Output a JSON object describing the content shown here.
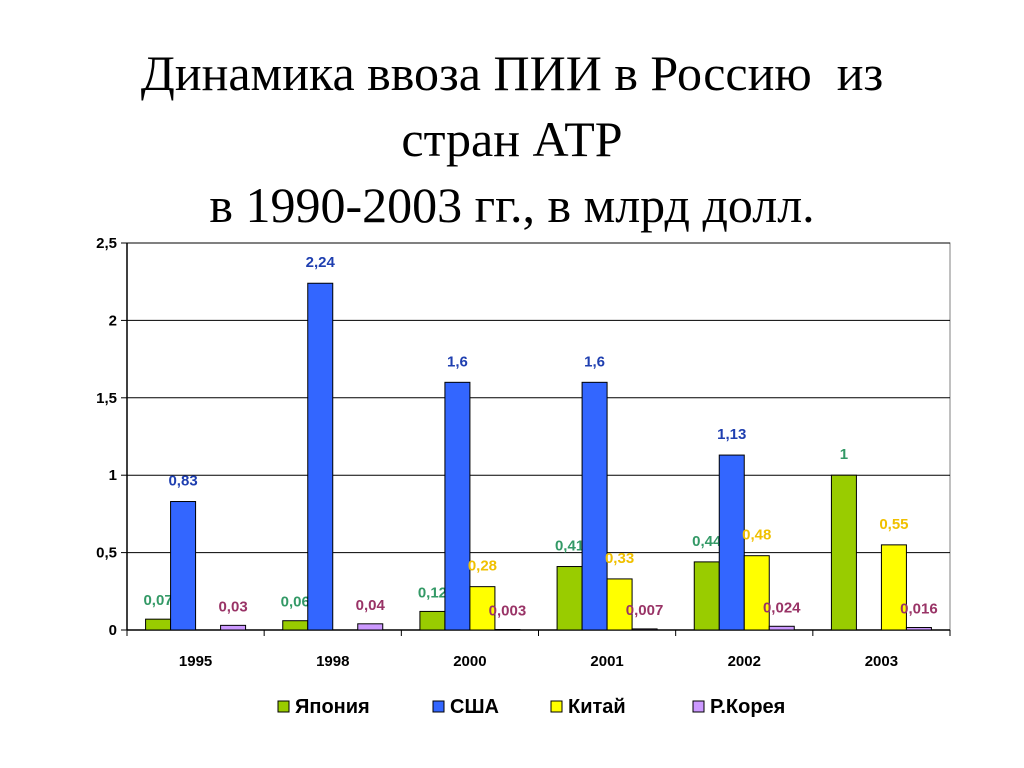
{
  "chart_data": {
    "type": "bar",
    "title_lines": [
      "Динамика ввоза ПИИ в Россию  из",
      "стран АТР",
      "в 1990-2003 гг., в млрд долл."
    ],
    "categories": [
      "1995",
      "1998",
      "2000",
      "2001",
      "2002",
      "2003"
    ],
    "series": [
      {
        "name": "Япония",
        "color": "#99CC00",
        "label_color": "#339966",
        "values": [
          0.07,
          0.06,
          0.12,
          0.41,
          0.44,
          1
        ],
        "labels": [
          "0,07",
          "0,06",
          "0,12",
          "0,41",
          "0,44",
          "1"
        ]
      },
      {
        "name": "США",
        "color": "#3366FF",
        "label_color": "#1F3FB0",
        "values": [
          0.83,
          2.24,
          1.6,
          1.6,
          1.13,
          null
        ],
        "labels": [
          "0,83",
          "2,24",
          "1,6",
          "1,6",
          "1,13",
          ""
        ]
      },
      {
        "name": "Китай",
        "color": "#FFFF00",
        "label_color": "#F0C000",
        "values": [
          null,
          null,
          0.28,
          0.33,
          0.48,
          0.55
        ],
        "labels": [
          "",
          "",
          "0,28",
          "0,33",
          "0,48",
          "0,55"
        ]
      },
      {
        "name": "Р.Корея",
        "color": "#CC99FF",
        "label_color": "#993366",
        "values": [
          0.03,
          0.04,
          0.003,
          0.007,
          0.024,
          0.016
        ],
        "labels": [
          "0,03",
          "0,04",
          "0,003",
          "0,007",
          "0,024",
          "0,016"
        ]
      }
    ],
    "ylim": [
      0,
      2.5
    ],
    "yticks": [
      0,
      0.5,
      1,
      1.5,
      2,
      2.5
    ],
    "ytick_labels": [
      "0",
      "0,5",
      "1",
      "1,5",
      "2",
      "2,5"
    ],
    "grid": true,
    "legend_position": "bottom"
  }
}
